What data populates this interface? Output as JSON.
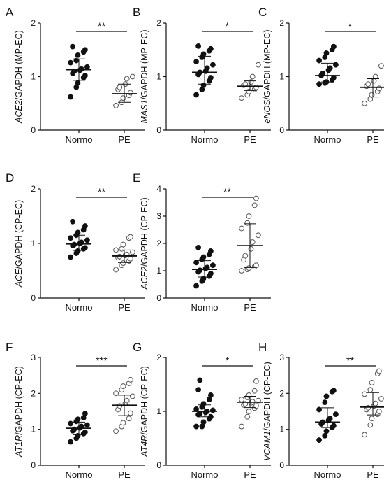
{
  "chart_data": [
    {
      "panel": "A",
      "type": "scatter",
      "ylabel": {
        "gene": "ACE2",
        "rest": "/GAPDH (MP-EC)"
      },
      "categories": [
        "Normo",
        "PE"
      ],
      "ylim": [
        0,
        2
      ],
      "yticks": [
        0,
        1,
        2
      ],
      "significance": "**",
      "series": [
        {
          "name": "Normo",
          "marker": "filled",
          "values": [
            0.62,
            0.8,
            0.88,
            0.98,
            1.02,
            1.06,
            1.1,
            1.12,
            1.14,
            1.18,
            1.26,
            1.3,
            1.4,
            1.46,
            1.5,
            1.56
          ],
          "center": 1.13,
          "err_low": 0.93,
          "err_high": 1.33
        },
        {
          "name": "PE",
          "marker": "open",
          "values": [
            0.46,
            0.52,
            0.6,
            0.65,
            0.7,
            0.76,
            0.8,
            0.86,
            0.96,
            1.0
          ],
          "center": 0.68,
          "err_low": 0.52,
          "err_high": 0.86
        }
      ]
    },
    {
      "panel": "B",
      "type": "scatter",
      "ylabel": {
        "gene": "MAS1",
        "rest": "/GAPDH (MP-EC)"
      },
      "categories": [
        "Normo",
        "PE"
      ],
      "ylim": [
        0,
        2
      ],
      "yticks": [
        0,
        1,
        2
      ],
      "significance": "*",
      "series": [
        {
          "name": "Normo",
          "marker": "filled",
          "values": [
            0.66,
            0.76,
            0.84,
            0.92,
            0.98,
            1.04,
            1.08,
            1.1,
            1.16,
            1.22,
            1.28,
            1.36,
            1.42,
            1.48,
            1.52,
            1.57
          ],
          "center": 1.08,
          "err_low": 0.86,
          "err_high": 1.38
        },
        {
          "name": "PE",
          "marker": "open",
          "values": [
            0.6,
            0.66,
            0.72,
            0.76,
            0.8,
            0.84,
            0.86,
            0.9,
            1.0,
            1.22
          ],
          "center": 0.82,
          "err_low": 0.74,
          "err_high": 0.92
        }
      ]
    },
    {
      "panel": "C",
      "type": "scatter",
      "ylabel": {
        "gene": "eNOS",
        "rest": "/GAPDH (MP-EC)"
      },
      "categories": [
        "Normo",
        "PE"
      ],
      "ylim": [
        0,
        2
      ],
      "yticks": [
        0,
        1,
        2
      ],
      "significance": "*",
      "series": [
        {
          "name": "Normo",
          "marker": "filled",
          "values": [
            0.86,
            0.88,
            0.9,
            0.94,
            0.98,
            1.02,
            1.06,
            1.12,
            1.16,
            1.22,
            1.3,
            1.36,
            1.44,
            1.5,
            1.56
          ],
          "center": 1.02,
          "err_low": 0.9,
          "err_high": 1.25
        },
        {
          "name": "PE",
          "marker": "open",
          "values": [
            0.5,
            0.58,
            0.66,
            0.72,
            0.78,
            0.82,
            0.86,
            0.92,
            1.0,
            1.2
          ],
          "center": 0.8,
          "err_low": 0.62,
          "err_high": 0.96
        }
      ]
    },
    {
      "panel": "D",
      "type": "scatter",
      "ylabel": {
        "gene": "ACE",
        "rest": "/GAPDH (CP-EC)"
      },
      "categories": [
        "Normo",
        "PE"
      ],
      "ylim": [
        0,
        2
      ],
      "yticks": [
        0,
        1,
        2
      ],
      "significance": "**",
      "series": [
        {
          "name": "Normo",
          "marker": "filled",
          "values": [
            0.75,
            0.82,
            0.86,
            0.9,
            0.92,
            0.96,
            0.98,
            1.0,
            1.02,
            1.06,
            1.1,
            1.15,
            1.2,
            1.25,
            1.32,
            1.4
          ],
          "center": 0.99,
          "err_low": 0.87,
          "err_high": 1.15
        },
        {
          "name": "PE",
          "marker": "open",
          "values": [
            0.52,
            0.6,
            0.64,
            0.68,
            0.72,
            0.74,
            0.76,
            0.78,
            0.8,
            0.84,
            0.88,
            0.9,
            0.98,
            1.1,
            1.12
          ],
          "center": 0.77,
          "err_low": 0.65,
          "err_high": 0.88
        }
      ]
    },
    {
      "panel": "E",
      "type": "scatter",
      "ylabel": {
        "gene": "ACE2",
        "rest": "/GAPDH (CP-EC)"
      },
      "categories": [
        "Normo",
        "PE"
      ],
      "ylim": [
        0,
        4
      ],
      "yticks": [
        0,
        1,
        2,
        3,
        4
      ],
      "significance": "**",
      "series": [
        {
          "name": "Normo",
          "marker": "filled",
          "values": [
            0.45,
            0.62,
            0.72,
            0.8,
            0.9,
            0.96,
            1.02,
            1.08,
            1.12,
            1.2,
            1.3,
            1.42,
            1.5,
            1.6,
            1.72,
            1.85
          ],
          "center": 1.05,
          "err_low": 0.77,
          "err_high": 1.37
        },
        {
          "name": "PE",
          "marker": "open",
          "values": [
            1.0,
            1.05,
            1.1,
            1.15,
            1.2,
            1.4,
            1.55,
            1.8,
            2.05,
            2.3,
            2.55,
            2.75,
            3.0,
            3.4,
            3.65
          ],
          "center": 1.92,
          "err_low": 1.12,
          "err_high": 2.72
        }
      ]
    },
    {
      "panel": "F",
      "type": "scatter",
      "ylabel": {
        "gene": "AT1R",
        "rest": "/GAPDH (CP-EC)"
      },
      "categories": [
        "Normo",
        "PE"
      ],
      "ylim": [
        0,
        3
      ],
      "yticks": [
        0,
        1,
        2,
        3
      ],
      "significance": "***",
      "series": [
        {
          "name": "Normo",
          "marker": "filled",
          "values": [
            0.65,
            0.75,
            0.82,
            0.88,
            0.92,
            0.96,
            1.0,
            1.04,
            1.08,
            1.12,
            1.16,
            1.22,
            1.28,
            1.32,
            1.44
          ],
          "center": 1.03,
          "err_low": 0.85,
          "err_high": 1.2
        },
        {
          "name": "PE",
          "marker": "open",
          "values": [
            0.95,
            1.08,
            1.18,
            1.3,
            1.45,
            1.55,
            1.65,
            1.72,
            1.8,
            1.92,
            2.0,
            2.1,
            2.2,
            2.28,
            2.38
          ],
          "center": 1.67,
          "err_low": 1.38,
          "err_high": 1.95
        }
      ]
    },
    {
      "panel": "G",
      "type": "scatter",
      "ylabel": {
        "gene": "AT4R",
        "rest": "/GAPDH (CP-EC)"
      },
      "categories": [
        "Normo",
        "PE"
      ],
      "ylim": [
        0,
        2
      ],
      "yticks": [
        0,
        1,
        2
      ],
      "significance": "*",
      "series": [
        {
          "name": "Normo",
          "marker": "filled",
          "values": [
            0.72,
            0.72,
            0.8,
            0.86,
            0.9,
            0.94,
            0.96,
            0.98,
            1.0,
            1.02,
            1.04,
            1.08,
            1.14,
            1.22,
            1.3,
            1.4,
            1.58
          ],
          "center": 1.0,
          "err_low": 0.9,
          "err_high": 1.12
        },
        {
          "name": "PE",
          "marker": "open",
          "values": [
            0.72,
            0.9,
            1.0,
            1.06,
            1.1,
            1.12,
            1.14,
            1.16,
            1.18,
            1.2,
            1.22,
            1.26,
            1.3,
            1.38,
            1.56
          ],
          "center": 1.17,
          "err_low": 1.07,
          "err_high": 1.28
        }
      ]
    },
    {
      "panel": "H",
      "type": "scatter",
      "ylabel": {
        "gene": "VCAM1",
        "rest": "/GAPDH (CP-EC)"
      },
      "categories": [
        "Normo",
        "PE"
      ],
      "ylim": [
        0,
        3
      ],
      "yticks": [
        0,
        1,
        2,
        3
      ],
      "significance": "**",
      "series": [
        {
          "name": "Normo",
          "marker": "filled",
          "values": [
            0.7,
            0.82,
            0.95,
            1.05,
            1.1,
            1.15,
            1.2,
            1.25,
            1.3,
            1.42,
            1.55,
            1.75,
            1.92,
            2.05,
            2.08
          ],
          "center": 1.2,
          "err_low": 1.05,
          "err_high": 1.6
        },
        {
          "name": "PE",
          "marker": "open",
          "values": [
            0.85,
            1.12,
            1.3,
            1.42,
            1.5,
            1.55,
            1.6,
            1.65,
            1.72,
            1.85,
            1.98,
            2.1,
            2.3,
            2.55,
            2.62
          ],
          "center": 1.62,
          "err_low": 1.4,
          "err_high": 2.02
        }
      ]
    }
  ]
}
